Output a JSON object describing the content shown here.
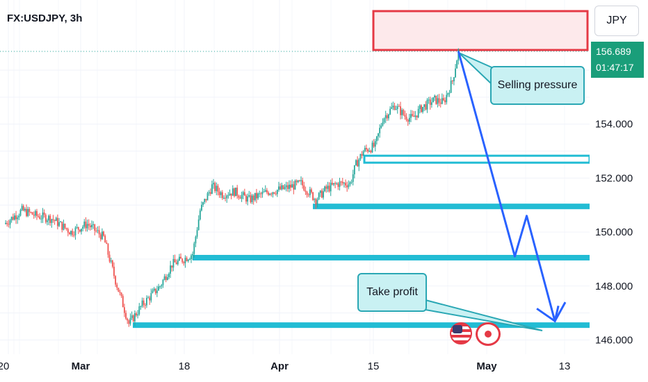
{
  "header": {
    "symbol": "FX:USDJPY, 3h",
    "currency_button": "JPY"
  },
  "price_badge": {
    "price": "156.689",
    "countdown": "01:47:17"
  },
  "annotations": {
    "selling_pressure": "Selling pressure",
    "take_profit": "Take profit"
  },
  "colors": {
    "up": "#26a69a",
    "down": "#ef5350",
    "zone_line": "#22bcd4",
    "projection": "#2962ff",
    "supply_zone_border": "#e53945",
    "supply_zone_fill": "#fde9eb",
    "price_badge": "#1a9e7a"
  },
  "icons": [
    "us-flag-icon",
    "japan-flag-icon"
  ],
  "chart_data": {
    "type": "candlestick",
    "symbol": "FX:USDJPY",
    "interval": "3h",
    "x_ticks": [
      "20",
      "Mar",
      "18",
      "Apr",
      "15",
      "May",
      "13"
    ],
    "y_ticks": [
      "146.000",
      "148.000",
      "150.000",
      "152.000",
      "154.000"
    ],
    "ylim": [
      145.8,
      157.5
    ],
    "last_price": 156.689,
    "price_path": [
      [
        0,
        150.3
      ],
      [
        12,
        150.8
      ],
      [
        22,
        150.6
      ],
      [
        32,
        150.5
      ],
      [
        45,
        150.0
      ],
      [
        56,
        150.3
      ],
      [
        67,
        149.8
      ],
      [
        75,
        148.2
      ],
      [
        84,
        146.6
      ],
      [
        93,
        147.3
      ],
      [
        105,
        148.0
      ],
      [
        113,
        148.8
      ],
      [
        121,
        149.0
      ],
      [
        127,
        149.2
      ],
      [
        132,
        150.8
      ],
      [
        140,
        151.7
      ],
      [
        147,
        151.4
      ],
      [
        155,
        151.5
      ],
      [
        165,
        151.2
      ],
      [
        178,
        151.5
      ],
      [
        188,
        151.6
      ],
      [
        200,
        151.8
      ],
      [
        210,
        151.2
      ],
      [
        217,
        151.6
      ],
      [
        225,
        151.8
      ],
      [
        233,
        151.8
      ],
      [
        237,
        152.5
      ],
      [
        242,
        153.0
      ],
      [
        250,
        153.2
      ],
      [
        255,
        154.2
      ],
      [
        263,
        154.7
      ],
      [
        270,
        154.3
      ],
      [
        275,
        154.2
      ],
      [
        281,
        154.6
      ],
      [
        290,
        154.9
      ],
      [
        296,
        154.8
      ],
      [
        302,
        155.6
      ],
      [
        306,
        156.7
      ]
    ],
    "support_levels": [
      146.55,
      149.05,
      150.95,
      152.7
    ],
    "resistance_zone": [
      156.7,
      158.2
    ],
    "projection_path": [
      [
        306,
        156.7
      ],
      [
        344,
        149.1
      ],
      [
        352,
        150.6
      ],
      [
        371,
        146.7
      ],
      [
        378,
        147.4
      ]
    ]
  }
}
